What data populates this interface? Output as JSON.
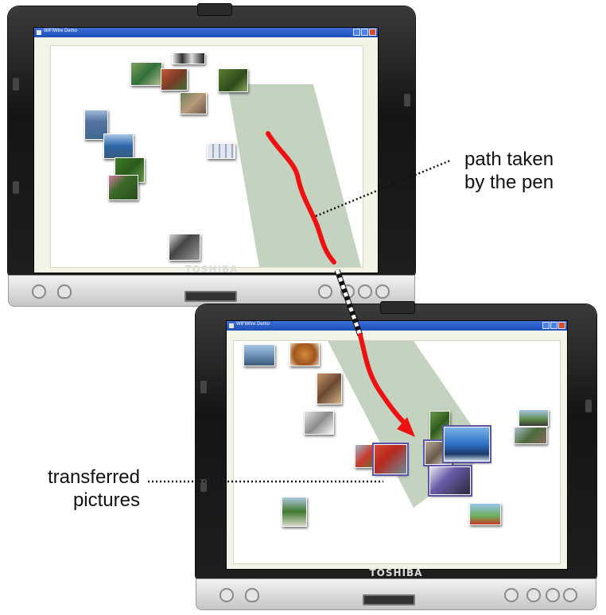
{
  "top_device": {
    "brand": "TOSHIBA",
    "window_title": "WiFiWire Demo"
  },
  "bottom_device": {
    "brand": "TOSHIBA",
    "window_title": "WiFiWire Demo"
  },
  "annotations": {
    "path_label_line1": "path taken",
    "path_label_line2": "by the pen",
    "transfer_label_line1": "transferred",
    "transfer_label_line2": "pictures"
  },
  "colors": {
    "pen_path": "#ee1111",
    "transfer_zone": "#c4d3c0",
    "titlebar": "#1d4fb8",
    "selection_outline": "#5b55a8"
  }
}
